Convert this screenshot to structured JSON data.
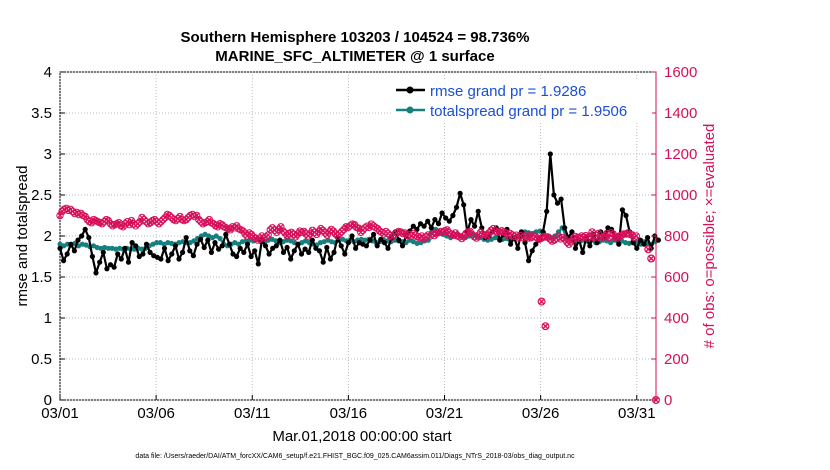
{
  "chart_data": {
    "type": "line",
    "title": "Southern Hemisphere 103203 / 104524 = 98.736%",
    "subtitle": "MARINE_SFC_ALTIMETER @ 1 surface",
    "xlabel": "Mar.01,2018 00:00:00 start",
    "ylabel": "rmse and totalspread",
    "ylabel_right": "# of obs: o=possible; ×=evaluated",
    "x_ticks": [
      "03/01",
      "03/06",
      "03/11",
      "03/16",
      "03/21",
      "03/26",
      "03/31"
    ],
    "x_tick_days": [
      0,
      5,
      10,
      15,
      20,
      25,
      30
    ],
    "xlim": [
      0,
      31
    ],
    "ylim": [
      0,
      4
    ],
    "y_ticks": [
      "0",
      "0.5",
      "1",
      "1.5",
      "2",
      "2.5",
      "3",
      "3.5",
      "4"
    ],
    "ylim_right": [
      0,
      1600
    ],
    "y_ticks_right": [
      "0",
      "200",
      "400",
      "600",
      "800",
      "1000",
      "1200",
      "1400",
      "1600"
    ],
    "colors": {
      "rmse": "#000000",
      "spread": "#17807e",
      "obs": "#d6105a"
    },
    "series": [
      {
        "name": "rmse",
        "legend": "rmse grand pr = 1.9286",
        "values": [
          1.85,
          1.7,
          1.78,
          1.9,
          1.82,
          1.95,
          2.0,
          2.08,
          1.98,
          1.75,
          1.55,
          1.68,
          1.8,
          1.6,
          1.65,
          1.62,
          1.78,
          1.72,
          1.85,
          1.68,
          1.92,
          1.88,
          1.75,
          1.78,
          1.9,
          1.8,
          1.76,
          1.74,
          1.72,
          1.85,
          1.7,
          1.78,
          1.88,
          1.72,
          1.8,
          1.98,
          1.82,
          1.76,
          1.9,
          1.96,
          1.86,
          1.95,
          1.8,
          1.92,
          1.84,
          1.88,
          2.02,
          1.9,
          1.78,
          1.75,
          1.85,
          1.8,
          1.9,
          1.75,
          1.82,
          1.66,
          1.95,
          1.88,
          1.78,
          1.85,
          1.88,
          1.95,
          1.8,
          1.86,
          1.72,
          1.82,
          1.9,
          1.78,
          1.84,
          1.8,
          1.95,
          1.85,
          1.82,
          1.68,
          1.86,
          1.72,
          1.8,
          1.98,
          1.88,
          1.78,
          1.92,
          2.0,
          1.85,
          1.92,
          1.9,
          1.88,
          1.95,
          2.02,
          1.88,
          1.96,
          1.92,
          1.85,
          1.98,
          2.05,
          1.95,
          1.88,
          2.0,
          2.06,
          2.12,
          2.08,
          2.15,
          2.12,
          2.18,
          2.1,
          2.2,
          2.15,
          2.28,
          2.22,
          2.18,
          2.25,
          2.35,
          2.52,
          2.38,
          2.05,
          2.2,
          2.12,
          2.3,
          2.1,
          1.98,
          2.0,
          2.05,
          2.1,
          1.95,
          2.02,
          2.08,
          1.9,
          1.98,
          1.85,
          2.05,
          1.92,
          1.7,
          1.82,
          1.9,
          1.95,
          2.05,
          2.3,
          3.0,
          2.5,
          2.4,
          2.45,
          2.1,
          1.98,
          2.05,
          1.85,
          1.95,
          1.8,
          1.98,
          1.88,
          2.02,
          1.92,
          2.05,
          1.98,
          2.1,
          2.08,
          2.0,
          1.9,
          2.32,
          2.25,
          2.05,
          1.92,
          1.85,
          1.95,
          1.9,
          1.98,
          1.85,
          2.0,
          1.95
        ],
        "start_day": 0.0,
        "step": 0.1875
      },
      {
        "name": "totalspread",
        "legend": "totalspread grand pr = 1.9506",
        "values": [
          1.9,
          1.88,
          1.9,
          1.89,
          1.91,
          1.88,
          1.9,
          1.89,
          1.87,
          1.88,
          1.86,
          1.85,
          1.86,
          1.85,
          1.85,
          1.84,
          1.85,
          1.84,
          1.85,
          1.84,
          1.84,
          1.85,
          1.84,
          1.85,
          1.88,
          1.9,
          1.92,
          1.92,
          1.9,
          1.92,
          1.91,
          1.9,
          1.92,
          1.93,
          1.92,
          1.92,
          1.94,
          1.97,
          2.0,
          2.02,
          2.0,
          1.98,
          2.0,
          1.97,
          1.9,
          1.88,
          1.9,
          1.92,
          1.9,
          1.93,
          1.94,
          1.95,
          1.94,
          1.96,
          1.93,
          1.92,
          1.95,
          1.96,
          1.94,
          1.92,
          1.93,
          1.95,
          1.94,
          1.92,
          1.9,
          1.92,
          1.94,
          1.92,
          1.9,
          1.89,
          1.92,
          1.93,
          1.95,
          1.93,
          1.92,
          1.95,
          1.96,
          1.94,
          1.95,
          1.93,
          1.95,
          1.96,
          1.95,
          1.96,
          1.94,
          1.92,
          1.93,
          1.95,
          1.94,
          1.93,
          1.95,
          1.94,
          1.93,
          1.92,
          1.95,
          1.93,
          1.91,
          1.92,
          1.94,
          1.95,
          2.06,
          2.08,
          2.05,
          2.02,
          2.0,
          1.98,
          2.0,
          2.02,
          2.0,
          1.98,
          2.0,
          2.02,
          2.0,
          1.98,
          1.96,
          1.95,
          1.96,
          1.98,
          1.97,
          1.96,
          1.97,
          1.95,
          1.98,
          2.0,
          2.02,
          2.05,
          2.04,
          2.03,
          2.05,
          2.06,
          2.04,
          2.0,
          1.98,
          2.0,
          2.05,
          2.1,
          2.0,
          1.96,
          1.95,
          1.93,
          1.94,
          1.95,
          1.93,
          1.95,
          1.92,
          1.93,
          1.95,
          1.94,
          1.92,
          1.95,
          1.93,
          1.94,
          1.92,
          1.91,
          1.93,
          1.92,
          1.9,
          1.93,
          1.91,
          1.9,
          1.93
        ],
        "start_day": 0.0,
        "step": 0.1935
      },
      {
        "name": "obs possible/evaluated",
        "values": [
          900,
          920,
          930,
          935,
          925,
          930,
          920,
          910,
          915,
          905,
          910,
          900,
          895,
          880,
          870,
          865,
          880,
          875,
          870,
          865,
          860,
          870,
          880,
          875,
          860,
          850,
          855,
          860,
          865,
          850,
          845,
          860,
          870,
          855,
          875,
          860,
          850,
          860,
          870,
          890,
          880,
          870,
          860,
          865,
          875,
          880,
          870,
          860,
          870,
          880,
          890,
          905,
          900,
          890,
          880,
          875,
          885,
          895,
          880,
          875,
          880,
          890,
          900,
          905,
          895,
          900,
          880,
          870,
          860,
          865,
          870,
          880,
          865,
          860,
          850,
          845,
          860,
          855,
          845,
          840,
          835,
          830,
          845,
          840,
          850,
          835,
          830,
          825,
          810,
          800,
          815,
          808,
          795,
          790,
          780,
          785,
          800,
          790,
          795,
          805,
          830,
          840,
          828,
          818,
          832,
          845,
          825,
          815,
          800,
          812,
          818,
          808,
          796,
          810,
          824,
          818,
          822,
          810,
          800,
          812,
          828,
          818,
          808,
          822,
          836,
          828,
          815,
          805,
          820,
          832,
          824,
          810,
          800,
          812,
          822,
          832,
          845,
          842,
          850,
          858,
          855,
          842,
          838,
          818,
          828,
          840,
          848,
          842,
          858,
          850,
          842,
          836,
          824,
          818,
          810,
          822,
          812,
          802,
          795,
          808,
          815,
          822,
          820,
          812,
          815,
          802,
          808,
          800,
          812,
          805,
          796,
          792,
          800,
          786,
          794,
          805,
          800,
          810,
          802,
          815,
          816,
          822,
          818,
          826,
          830,
          816,
          808,
          804,
          815,
          800,
          796,
          788,
          800,
          812,
          820,
          822,
          808,
          796,
          790,
          804,
          818,
          808,
          806,
          800,
          815,
          828,
          836,
          824,
          818,
          820,
          826,
          820,
          815,
          800,
          812,
          806,
          798,
          804,
          790,
          802,
          792,
          800,
          808,
          790,
          792,
          805,
          796,
          790,
          785,
          790,
          798,
          795,
          795,
          785,
          775,
          780,
          790,
          800,
          786,
          792,
          785,
          770,
          760,
          775,
          785,
          798,
          792,
          788,
          800,
          795,
          802,
          790,
          800,
          820,
          792,
          802,
          812,
          790,
          795,
          800,
          812,
          792,
          816,
          810,
          792,
          790,
          800,
          804,
          810,
          810,
          815,
          808,
          806,
          792,
          800
        ],
        "start_day": 0.0,
        "step": 0.1094
      }
    ],
    "obs_outliers": [
      {
        "day": 25.05,
        "value": 480
      },
      {
        "day": 25.25,
        "value": 360
      },
      {
        "day": 30.6,
        "value": 735
      },
      {
        "day": 30.75,
        "value": 690
      },
      {
        "day": 31.0,
        "value": 0
      }
    ]
  },
  "footer": "data file: /Users/raeder/DAI/ATM_forcXX/CAM6_setup/f.e21.FHIST_BGC.f09_025.CAM6assim.011/Diags_NTrS_2018-03/obs_diag_output.nc"
}
